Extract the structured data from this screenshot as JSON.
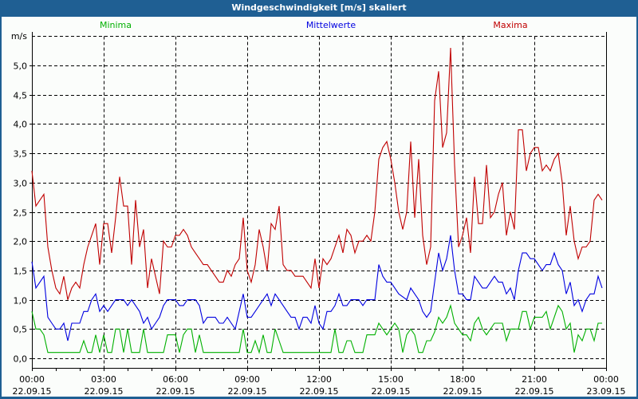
{
  "window": {
    "title": "Windgeschwindigkeit [m/s] skaliert"
  },
  "chart_data": {
    "type": "line",
    "title": "Windgeschwindigkeit [m/s] skaliert",
    "ylabel": "m/s",
    "xlabel": "",
    "ylim": [
      0,
      5.5
    ],
    "yticks": [
      0,
      0.5,
      1,
      1.5,
      2,
      2.5,
      3,
      3.5,
      4,
      4.5,
      5
    ],
    "ytick_labels": [
      "0,0",
      "0,5",
      "1,0",
      "1,5",
      "2,0",
      "2,5",
      "3,0",
      "3,5",
      "4,0",
      "4,5",
      "5,0"
    ],
    "x_unit": "hours since 22.09.15 00:00",
    "xlim": [
      0,
      24
    ],
    "sample_interval_minutes": 10,
    "xticks": [
      {
        "time": "00:00",
        "date": "22.09.15",
        "hour": 0
      },
      {
        "time": "03:00",
        "date": "22.09.15",
        "hour": 3
      },
      {
        "time": "06:00",
        "date": "22.09.15",
        "hour": 6
      },
      {
        "time": "09:00",
        "date": "22.09.15",
        "hour": 9
      },
      {
        "time": "12:00",
        "date": "22.09.15",
        "hour": 12
      },
      {
        "time": "15:00",
        "date": "22.09.15",
        "hour": 15
      },
      {
        "time": "18:00",
        "date": "22.09.15",
        "hour": 18
      },
      {
        "time": "21:00",
        "date": "22.09.15",
        "hour": 21
      },
      {
        "time": "00:00",
        "date": "23.09.15",
        "hour": 24
      }
    ],
    "grid": true,
    "legend_position": "top",
    "series": [
      {
        "name": "Minima",
        "color": "#00b000",
        "values": [
          0.8,
          0.5,
          0.5,
          0.4,
          0.1,
          0.1,
          0.1,
          0.1,
          0.1,
          0.1,
          0.1,
          0.1,
          0.1,
          0.3,
          0.1,
          0.1,
          0.4,
          0.1,
          0.4,
          0.1,
          0.1,
          0.5,
          0.5,
          0.1,
          0.5,
          0.1,
          0.1,
          0.1,
          0.5,
          0.1,
          0.1,
          0.1,
          0.1,
          0.1,
          0.4,
          0.4,
          0.4,
          0.1,
          0.4,
          0.5,
          0.5,
          0.1,
          0.4,
          0.1,
          0.1,
          0.1,
          0.1,
          0.1,
          0.1,
          0.1,
          0.1,
          0.1,
          0.1,
          0.5,
          0.1,
          0.1,
          0.3,
          0.1,
          0.4,
          0.1,
          0.1,
          0.5,
          0.3,
          0.1,
          0.1,
          0.1,
          0.1,
          0.1,
          0.1,
          0.1,
          0.1,
          0.1,
          0.1,
          0.1,
          0.1,
          0.1,
          0.5,
          0.1,
          0.1,
          0.3,
          0.3,
          0.1,
          0.1,
          0.1,
          0.4,
          0.4,
          0.4,
          0.6,
          0.5,
          0.4,
          0.5,
          0.6,
          0.5,
          0.1,
          0.4,
          0.5,
          0.4,
          0.1,
          0.1,
          0.3,
          0.3,
          0.45,
          0.7,
          0.6,
          0.7,
          0.9,
          0.6,
          0.5,
          0.4,
          0.4,
          0.3,
          0.6,
          0.7,
          0.5,
          0.4,
          0.5,
          0.6,
          0.6,
          0.6,
          0.3,
          0.5,
          0.5,
          0.5,
          0.8,
          0.8,
          0.5,
          0.7,
          0.7,
          0.7,
          0.8,
          0.5,
          0.7,
          0.9,
          0.8,
          0.5,
          0.6,
          0.1,
          0.4,
          0.3,
          0.5,
          0.5,
          0.3,
          0.6,
          0.6
        ]
      },
      {
        "name": "Mittelwerte",
        "color": "#0000e0",
        "values": [
          1.65,
          1.2,
          1.3,
          1.4,
          0.7,
          0.6,
          0.5,
          0.5,
          0.6,
          0.3,
          0.6,
          0.6,
          0.6,
          0.8,
          0.8,
          1.0,
          1.1,
          0.8,
          0.9,
          0.8,
          0.9,
          1.0,
          1.0,
          1.0,
          0.9,
          1.0,
          0.9,
          0.8,
          0.6,
          0.7,
          0.5,
          0.6,
          0.7,
          0.9,
          1.0,
          1.0,
          1.0,
          0.9,
          0.9,
          1.0,
          1.0,
          1.0,
          0.9,
          0.6,
          0.7,
          0.7,
          0.7,
          0.6,
          0.6,
          0.7,
          0.6,
          0.5,
          0.8,
          1.1,
          0.7,
          0.7,
          0.8,
          0.9,
          1.0,
          1.1,
          0.9,
          1.1,
          1.0,
          0.9,
          0.8,
          0.7,
          0.7,
          0.5,
          0.7,
          0.7,
          0.6,
          0.9,
          0.6,
          0.5,
          0.8,
          0.8,
          0.9,
          1.1,
          0.9,
          0.9,
          1.0,
          1.0,
          1.0,
          0.9,
          1.0,
          1.0,
          1.0,
          1.6,
          1.4,
          1.3,
          1.3,
          1.2,
          1.1,
          1.05,
          1.0,
          1.2,
          1.1,
          1.0,
          0.8,
          0.7,
          0.8,
          1.3,
          1.8,
          1.5,
          1.7,
          2.1,
          1.5,
          1.1,
          1.1,
          1.0,
          1.0,
          1.4,
          1.3,
          1.2,
          1.2,
          1.3,
          1.4,
          1.3,
          1.3,
          1.1,
          1.2,
          1.0,
          1.5,
          1.8,
          1.8,
          1.7,
          1.7,
          1.6,
          1.5,
          1.6,
          1.6,
          1.8,
          1.6,
          1.5,
          1.1,
          1.3,
          0.9,
          1.0,
          0.8,
          1.0,
          1.1,
          1.1,
          1.4,
          1.2
        ]
      },
      {
        "name": "Maxima",
        "color": "#c00000",
        "values": [
          3.2,
          2.6,
          2.7,
          2.8,
          1.9,
          1.5,
          1.2,
          1.1,
          1.4,
          1.0,
          1.2,
          1.3,
          1.2,
          1.6,
          1.9,
          2.1,
          2.3,
          1.6,
          2.3,
          2.3,
          1.8,
          2.4,
          3.1,
          2.6,
          2.6,
          1.6,
          2.7,
          1.9,
          2.2,
          1.2,
          1.7,
          1.4,
          1.1,
          2.0,
          1.9,
          1.9,
          2.1,
          2.1,
          2.2,
          2.1,
          1.9,
          1.8,
          1.7,
          1.6,
          1.6,
          1.5,
          1.4,
          1.3,
          1.3,
          1.5,
          1.4,
          1.6,
          1.7,
          2.4,
          1.5,
          1.3,
          1.6,
          2.2,
          1.9,
          1.5,
          2.3,
          2.2,
          2.6,
          1.6,
          1.5,
          1.5,
          1.4,
          1.4,
          1.4,
          1.3,
          1.2,
          1.7,
          1.2,
          1.7,
          1.6,
          1.7,
          1.9,
          2.1,
          1.8,
          2.2,
          2.1,
          1.8,
          2.0,
          2.0,
          2.1,
          2.0,
          2.5,
          3.4,
          3.6,
          3.7,
          3.4,
          3.0,
          2.5,
          2.2,
          2.5,
          3.7,
          2.4,
          3.4,
          2.1,
          1.6,
          1.9,
          4.4,
          4.9,
          3.6,
          3.85,
          5.3,
          3.3,
          1.9,
          2.1,
          2.4,
          1.8,
          3.1,
          2.3,
          2.3,
          3.3,
          2.4,
          2.5,
          2.8,
          3.0,
          2.1,
          2.5,
          2.2,
          3.9,
          3.9,
          3.2,
          3.5,
          3.6,
          3.6,
          3.2,
          3.3,
          3.2,
          3.4,
          3.5,
          3.0,
          2.1,
          2.6,
          2.0,
          1.7,
          1.9,
          1.9,
          2.0,
          2.7,
          2.8,
          2.7
        ]
      }
    ]
  }
}
